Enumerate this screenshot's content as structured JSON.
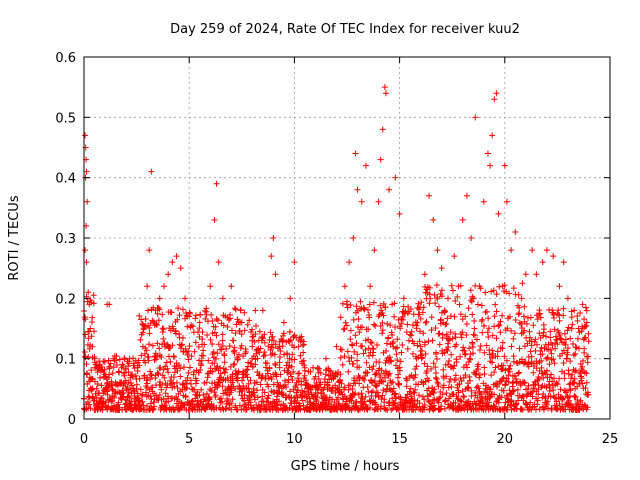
{
  "chart_data": {
    "type": "scatter",
    "title": "Day 259 of 2024, Rate Of TEC Index for receiver kuu2",
    "xlabel": "GPS time / hours",
    "ylabel": "ROTI / TECUs",
    "xlim": [
      0,
      25
    ],
    "ylim": [
      0,
      0.6
    ],
    "xticks": [
      "0",
      "5",
      "10",
      "15",
      "20",
      "25"
    ],
    "yticks": [
      "0",
      "0.1",
      "0.2",
      "0.3",
      "0.4",
      "0.5",
      "0.6"
    ],
    "grid": true,
    "marker": "+",
    "color": "#ff0000",
    "series": [
      {
        "values_note": "dense cloud of ROTI samples, x = GPS hours, y = TECU/min",
        "points": [
          [
            0.05,
            0.47
          ],
          [
            0.08,
            0.45
          ],
          [
            0.1,
            0.43
          ],
          [
            0.12,
            0.41
          ],
          [
            0.07,
            0.4
          ],
          [
            0.15,
            0.36
          ],
          [
            0.1,
            0.32
          ],
          [
            0.05,
            0.28
          ],
          [
            0.12,
            0.26
          ],
          [
            0.2,
            0.21
          ],
          [
            0.25,
            0.19
          ],
          [
            0.3,
            0.15
          ],
          [
            0.4,
            0.12
          ],
          [
            0.5,
            0.1
          ],
          [
            0.6,
            0.09
          ],
          [
            0.8,
            0.08
          ],
          [
            1.0,
            0.07
          ],
          [
            1.1,
            0.19
          ],
          [
            1.2,
            0.19
          ],
          [
            1.5,
            0.06
          ],
          [
            2.0,
            0.05
          ],
          [
            2.5,
            0.05
          ],
          [
            2.8,
            0.12
          ],
          [
            3.0,
            0.22
          ],
          [
            3.1,
            0.28
          ],
          [
            3.2,
            0.41
          ],
          [
            3.4,
            0.18
          ],
          [
            3.6,
            0.2
          ],
          [
            3.8,
            0.22
          ],
          [
            4.0,
            0.24
          ],
          [
            4.2,
            0.26
          ],
          [
            4.4,
            0.27
          ],
          [
            4.6,
            0.25
          ],
          [
            4.8,
            0.2
          ],
          [
            5.0,
            0.17
          ],
          [
            5.5,
            0.16
          ],
          [
            6.0,
            0.22
          ],
          [
            6.2,
            0.33
          ],
          [
            6.3,
            0.39
          ],
          [
            6.4,
            0.26
          ],
          [
            6.6,
            0.2
          ],
          [
            7.0,
            0.22
          ],
          [
            7.5,
            0.16
          ],
          [
            8.0,
            0.12
          ],
          [
            8.5,
            0.18
          ],
          [
            8.9,
            0.27
          ],
          [
            9.0,
            0.3
          ],
          [
            9.1,
            0.24
          ],
          [
            9.5,
            0.16
          ],
          [
            9.8,
            0.2
          ],
          [
            10.0,
            0.26
          ],
          [
            10.2,
            0.12
          ],
          [
            10.5,
            0.08
          ],
          [
            11.0,
            0.07
          ],
          [
            11.5,
            0.1
          ],
          [
            12.0,
            0.12
          ],
          [
            12.4,
            0.22
          ],
          [
            12.6,
            0.26
          ],
          [
            12.8,
            0.3
          ],
          [
            12.9,
            0.44
          ],
          [
            13.0,
            0.38
          ],
          [
            13.2,
            0.36
          ],
          [
            13.4,
            0.42
          ],
          [
            13.6,
            0.22
          ],
          [
            13.8,
            0.28
          ],
          [
            14.0,
            0.36
          ],
          [
            14.1,
            0.43
          ],
          [
            14.2,
            0.48
          ],
          [
            14.3,
            0.55
          ],
          [
            14.35,
            0.54
          ],
          [
            14.5,
            0.38
          ],
          [
            14.8,
            0.4
          ],
          [
            15.0,
            0.34
          ],
          [
            15.2,
            0.2
          ],
          [
            15.5,
            0.14
          ],
          [
            15.8,
            0.1
          ],
          [
            16.0,
            0.12
          ],
          [
            16.2,
            0.24
          ],
          [
            16.4,
            0.37
          ],
          [
            16.6,
            0.33
          ],
          [
            16.8,
            0.28
          ],
          [
            17.0,
            0.25
          ],
          [
            17.3,
            0.2
          ],
          [
            17.6,
            0.27
          ],
          [
            17.8,
            0.22
          ],
          [
            18.0,
            0.33
          ],
          [
            18.2,
            0.37
          ],
          [
            18.4,
            0.3
          ],
          [
            18.6,
            0.5
          ],
          [
            18.8,
            0.22
          ],
          [
            19.0,
            0.36
          ],
          [
            19.2,
            0.44
          ],
          [
            19.3,
            0.42
          ],
          [
            19.4,
            0.47
          ],
          [
            19.5,
            0.53
          ],
          [
            19.6,
            0.54
          ],
          [
            19.7,
            0.34
          ],
          [
            19.9,
            0.22
          ],
          [
            20.0,
            0.42
          ],
          [
            20.1,
            0.36
          ],
          [
            20.3,
            0.28
          ],
          [
            20.5,
            0.31
          ],
          [
            20.8,
            0.2
          ],
          [
            21.0,
            0.24
          ],
          [
            21.3,
            0.28
          ],
          [
            21.5,
            0.24
          ],
          [
            21.8,
            0.26
          ],
          [
            22.0,
            0.28
          ],
          [
            22.3,
            0.27
          ],
          [
            22.6,
            0.22
          ],
          [
            22.8,
            0.26
          ],
          [
            23.0,
            0.2
          ],
          [
            23.3,
            0.18
          ],
          [
            23.5,
            0.15
          ],
          [
            23.7,
            0.19
          ],
          [
            23.9,
            0.16
          ]
        ]
      }
    ]
  }
}
